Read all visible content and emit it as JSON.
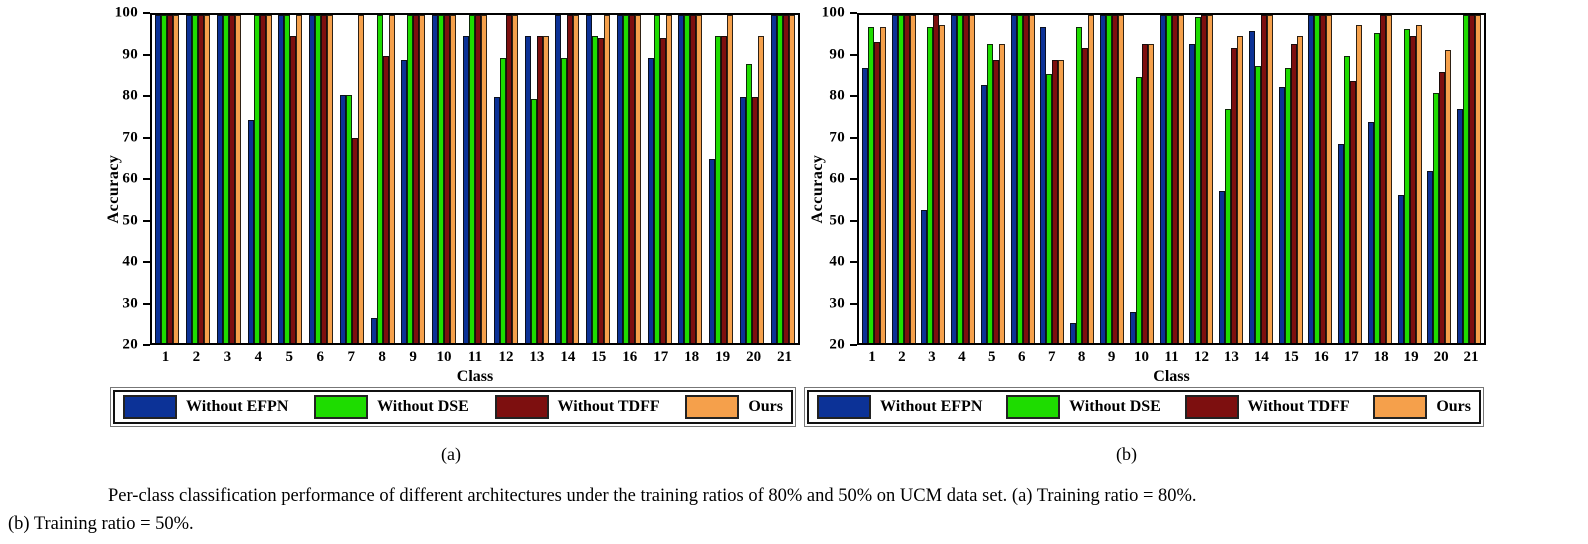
{
  "figure": {
    "caption_line1": "Per-class classification performance of different architectures under the training ratios of 80% and 50% on UCM data set. (a) Training ratio = 80%.",
    "caption_line2": "(b) Training ratio = 50%.",
    "subfig_a_label": "(a)",
    "subfig_b_label": "(b)"
  },
  "colors": {
    "without_efpn_blue": "#0C3297",
    "without_dse_green": "#1EDC00",
    "without_tdff_darkred": "#7D0F0F",
    "ours_orange": "#F5A04B",
    "axis_black": "#000000"
  },
  "chart_data": [
    {
      "type": "bar",
      "title": "(a) Training ratio = 80%",
      "xlabel": "Class",
      "ylabel": "Accuracy",
      "ylim": [
        20,
        100
      ],
      "yticks": [
        20,
        30,
        40,
        50,
        60,
        70,
        80,
        90,
        100
      ],
      "grid": false,
      "legend_position": "bottom",
      "categories": [
        "1",
        "2",
        "3",
        "4",
        "5",
        "6",
        "7",
        "8",
        "9",
        "10",
        "11",
        "12",
        "13",
        "14",
        "15",
        "16",
        "17",
        "18",
        "19",
        "20",
        "21"
      ],
      "series": [
        {
          "name": "Without EFPN",
          "color": "#0C3297",
          "values": [
            100,
            100,
            100,
            74.5,
            100,
            100,
            80.5,
            26,
            89,
            100,
            95,
            80,
            95,
            100,
            100,
            100,
            89.5,
            100,
            65,
            80,
            100
          ]
        },
        {
          "name": "Without DSE",
          "color": "#1EDC00",
          "values": [
            100,
            100,
            100,
            100,
            100,
            100,
            80.5,
            100,
            100,
            100,
            100,
            89.5,
            79.5,
            89.5,
            95,
            100,
            100,
            100,
            95,
            88,
            100
          ]
        },
        {
          "name": "Without TDFF",
          "color": "#7D0F0F",
          "values": [
            100,
            100,
            100,
            100,
            95,
            100,
            70,
            90,
            100,
            100,
            100,
            100,
            95,
            100,
            94.5,
            100,
            94.5,
            100,
            95,
            80,
            100
          ]
        },
        {
          "name": "Ours",
          "color": "#F5A04B",
          "values": [
            100,
            100,
            100,
            100,
            100,
            100,
            100,
            100,
            100,
            100,
            100,
            100,
            95,
            100,
            100,
            100,
            100,
            100,
            100,
            95,
            100
          ]
        }
      ]
    },
    {
      "type": "bar",
      "title": "(b) Training ratio = 50%",
      "xlabel": "Class",
      "ylabel": "Accuracy",
      "ylim": [
        20,
        100
      ],
      "yticks": [
        20,
        30,
        40,
        50,
        60,
        70,
        80,
        90,
        100
      ],
      "grid": false,
      "legend_position": "bottom",
      "categories": [
        "1",
        "2",
        "3",
        "4",
        "5",
        "6",
        "7",
        "8",
        "9",
        "10",
        "11",
        "12",
        "13",
        "14",
        "15",
        "16",
        "17",
        "18",
        "19",
        "20",
        "21"
      ],
      "series": [
        {
          "name": "Without EFPN",
          "color": "#0C3297",
          "values": [
            87,
            100,
            52.5,
            100,
            83,
            100,
            97,
            25,
            100,
            27.5,
            100,
            93,
            57,
            96,
            82.5,
            100,
            68.5,
            74,
            56,
            62,
            77
          ]
        },
        {
          "name": "Without DSE",
          "color": "#1EDC00",
          "values": [
            97,
            100,
            97,
            100,
            93,
            100,
            85.5,
            97,
            100,
            85,
            100,
            99.5,
            77,
            87.5,
            87,
            100,
            90,
            95.5,
            96.5,
            81,
            100
          ]
        },
        {
          "name": "Without TDFF",
          "color": "#7D0F0F",
          "values": [
            93.5,
            100,
            100,
            100,
            89,
            100,
            89,
            92,
            100,
            93,
            100,
            100,
            92,
            100,
            93,
            100,
            84,
            100,
            95,
            86,
            100
          ]
        },
        {
          "name": "Ours",
          "color": "#F5A04B",
          "values": [
            97,
            100,
            97.5,
            100,
            93,
            100,
            89,
            100,
            100,
            93,
            100,
            100,
            95,
            100,
            95,
            100,
            97.5,
            100,
            97.5,
            91.5,
            100
          ]
        }
      ]
    }
  ]
}
